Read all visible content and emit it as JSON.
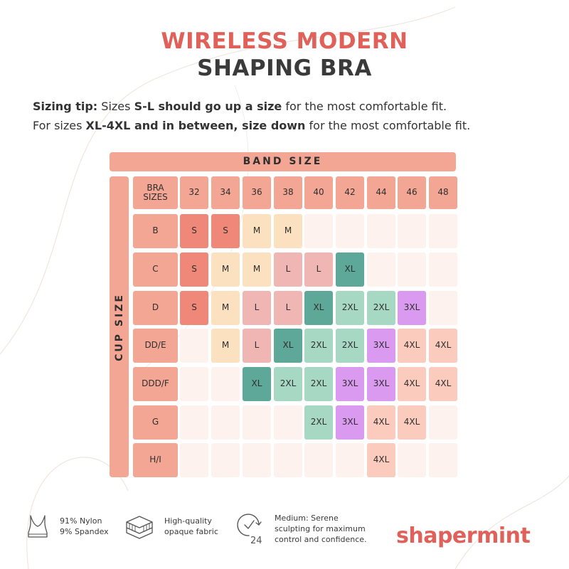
{
  "title": {
    "line1": "WIRELESS MODERN",
    "line2": "SHAPING BRA"
  },
  "tip": {
    "line1": [
      {
        "text": "Sizing tip:",
        "bold": true
      },
      {
        "text": " Sizes ",
        "bold": false
      },
      {
        "text": "S-L should go up a size",
        "bold": true
      },
      {
        "text": " for the most comfortable fit.",
        "bold": false
      }
    ],
    "line2": [
      {
        "text": "For sizes ",
        "bold": false
      },
      {
        "text": "XL-4XL and in between, size down",
        "bold": true
      },
      {
        "text": " for the most comfortable fit.",
        "bold": false
      }
    ]
  },
  "chart": {
    "band_label": "BAND SIZE",
    "cup_label": "CUP SIZE",
    "corner_label": "BRA SIZES",
    "band_sizes": [
      "32",
      "34",
      "36",
      "38",
      "40",
      "42",
      "44",
      "46",
      "48"
    ],
    "rows": [
      {
        "cup": "B",
        "sizes": [
          "S",
          "S",
          "M",
          "M",
          "",
          "",
          "",
          "",
          ""
        ]
      },
      {
        "cup": "C",
        "sizes": [
          "S",
          "M",
          "M",
          "L",
          "L",
          "XL",
          "",
          "",
          ""
        ]
      },
      {
        "cup": "D",
        "sizes": [
          "S",
          "M",
          "L",
          "L",
          "XL",
          "2XL",
          "2XL",
          "3XL",
          ""
        ]
      },
      {
        "cup": "DD/E",
        "sizes": [
          "",
          "M",
          "L",
          "XL",
          "2XL",
          "2XL",
          "3XL",
          "4XL",
          "4XL"
        ]
      },
      {
        "cup": "DDD/F",
        "sizes": [
          "",
          "",
          "XL",
          "2XL",
          "2XL",
          "3XL",
          "3XL",
          "4XL",
          "4XL"
        ]
      },
      {
        "cup": "G",
        "sizes": [
          "",
          "",
          "",
          "",
          "2XL",
          "3XL",
          "4XL",
          "4XL",
          ""
        ]
      },
      {
        "cup": "H/I",
        "sizes": [
          "",
          "",
          "",
          "",
          "",
          "",
          "4XL",
          "",
          ""
        ]
      }
    ],
    "colors": {
      "header": "#f2a693",
      "S": "#f0887a",
      "M": "#fbe1c0",
      "L": "#f0b6b3",
      "XL": "#5ea899",
      "2XL": "#a6d8c4",
      "3XL": "#d99af0",
      "4XL": "#fbcbbd",
      "empty": "#fdf2ee"
    }
  },
  "features": [
    {
      "icon": "bra-icon",
      "lines": [
        "91% Nylon",
        "9% Spandex"
      ]
    },
    {
      "icon": "fabric-layers-icon",
      "lines": [
        "High-quality",
        "opaque fabric"
      ]
    },
    {
      "icon": "24-hour-clock-icon",
      "lines": [
        "Medium: Serene",
        "sculpting for maximum",
        "control and confidence."
      ]
    }
  ],
  "logo": {
    "text": "shapermint",
    "color": "#e0605a"
  }
}
